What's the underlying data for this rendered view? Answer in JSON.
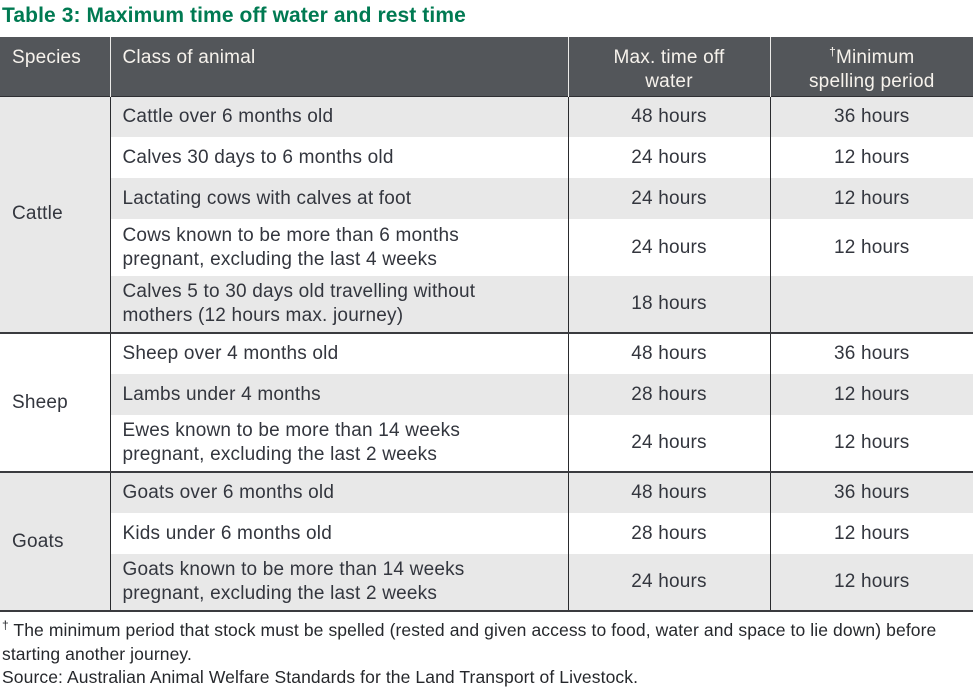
{
  "title": "Table 3: Maximum time off water and rest time",
  "colors": {
    "title_green": "#007a52",
    "header_bg": "#53565a",
    "header_text": "#f6f2ec",
    "row_stripe": "#e8e8e8",
    "body_text": "#33363e",
    "rule_dark": "#2e2f33"
  },
  "table": {
    "headers": {
      "species": "Species",
      "class": "Class of animal",
      "max_time_lines": [
        "Max. time off",
        "water"
      ],
      "min_dagger": "†",
      "min_line1": "Minimum",
      "min_line2": "spelling period"
    },
    "groups": [
      {
        "species": "Cattle",
        "rows": [
          {
            "class": "Cattle over 6 months old",
            "max": "48 hours",
            "min": "36 hours"
          },
          {
            "class": "Calves 30 days to 6 months old",
            "max": "24 hours",
            "min": "12 hours"
          },
          {
            "class": "Lactating cows with calves at foot",
            "max": "24 hours",
            "min": "12 hours"
          },
          {
            "class": "Cows known to be more than 6 months pregnant, excluding the last 4 weeks",
            "max": "24 hours",
            "min": "12 hours"
          },
          {
            "class": "Calves 5 to 30 days old travelling without mothers (12 hours max. journey)",
            "max": "18 hours",
            "min": ""
          }
        ]
      },
      {
        "species": "Sheep",
        "rows": [
          {
            "class": "Sheep over 4 months old",
            "max": "48 hours",
            "min": "36 hours"
          },
          {
            "class": "Lambs under 4 months",
            "max": "28 hours",
            "min": "12 hours"
          },
          {
            "class": "Ewes known to be more than 14 weeks pregnant, excluding the last 2 weeks",
            "max": "24 hours",
            "min": "12 hours"
          }
        ]
      },
      {
        "species": "Goats",
        "rows": [
          {
            "class": "Goats over 6 months old",
            "max": "48 hours",
            "min": "36 hours"
          },
          {
            "class": "Kids under 6 months old",
            "max": "28 hours",
            "min": "12 hours"
          },
          {
            "class": "Goats known to be more than 14 weeks pregnant, excluding the last 2 weeks",
            "max": "24 hours",
            "min": "12 hours"
          }
        ]
      }
    ]
  },
  "footnote": {
    "dagger": "†",
    "text": " The minimum period that stock must be spelled (rested and given access to food, water and space to lie down) before starting another journey.",
    "source": "Source: Australian Animal Welfare Standards for the Land Transport of Livestock."
  }
}
